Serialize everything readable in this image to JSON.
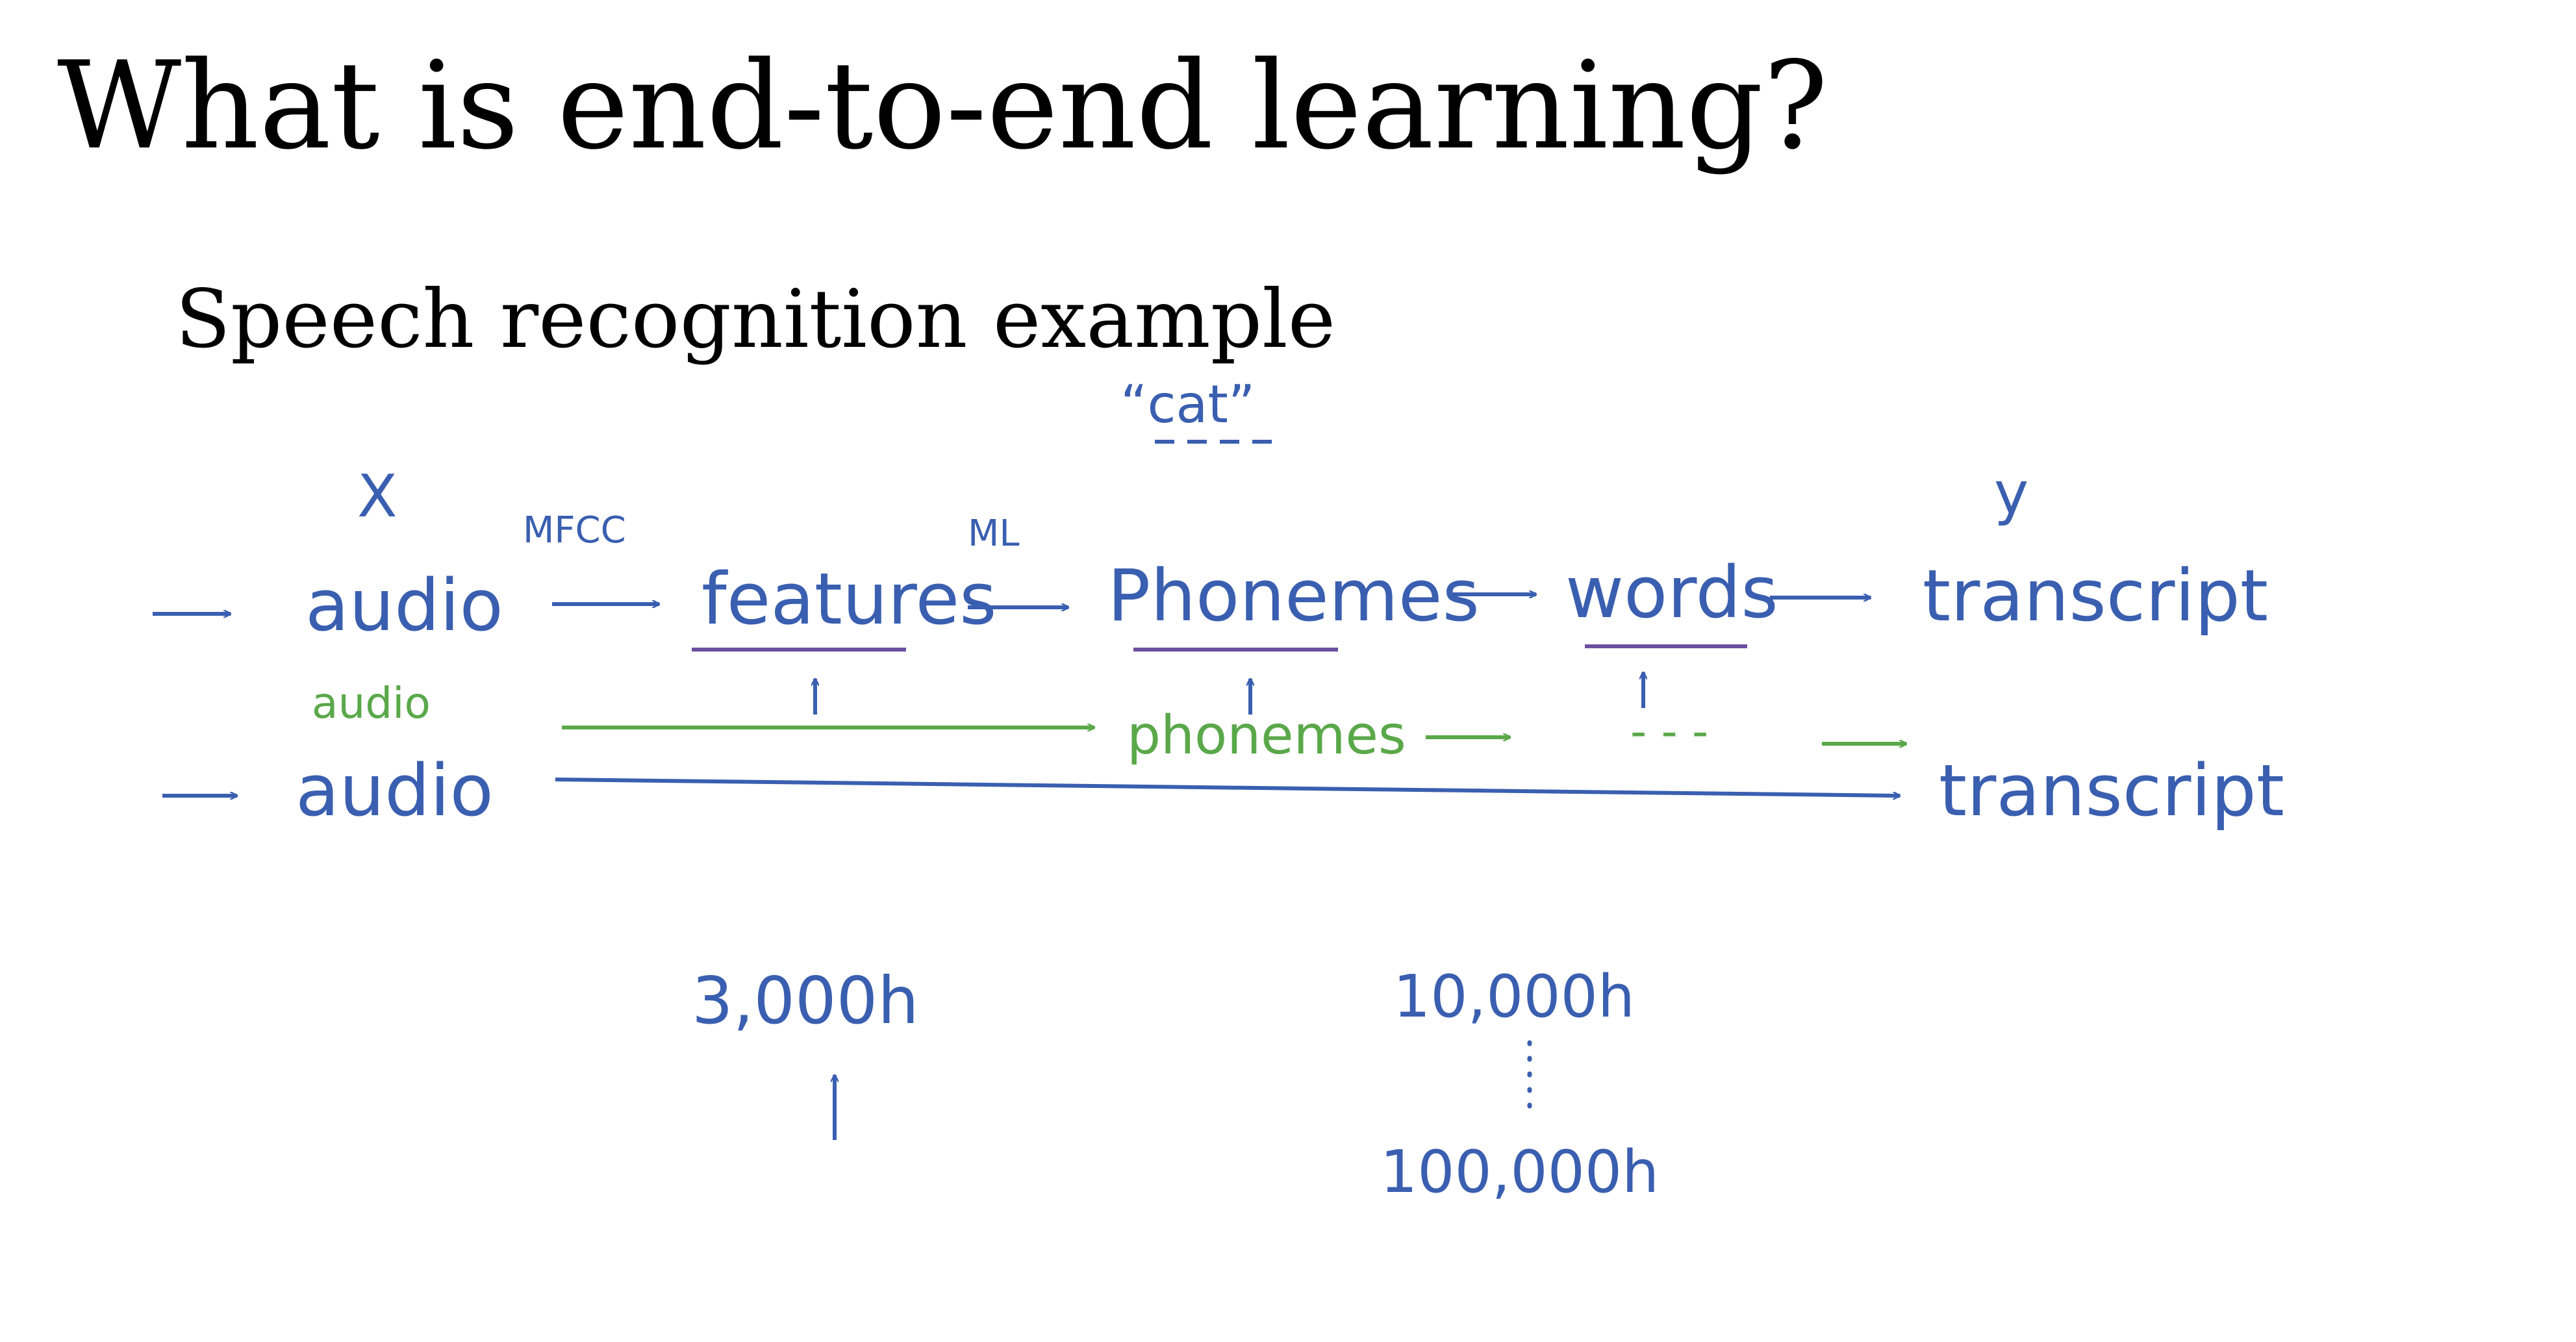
{
  "slide": {
    "title": "What is end-to-end learning?",
    "subtitle": "Speech recognition example"
  },
  "diagram": {
    "annotations": {
      "cat_label": "“cat”",
      "x_label": "X",
      "y_label": "y",
      "mfcc_label": "MFCC",
      "ml_label": "ML"
    },
    "pipeline_row": {
      "audio": "audio",
      "features": "features",
      "phonemes": "Phonemes",
      "words": "words",
      "transcript": "transcript"
    },
    "middle_row": {
      "audio": "audio",
      "phonemes": "phonemes",
      "ellipsis": "- - -"
    },
    "end_to_end_row": {
      "audio": "audio",
      "transcript": "transcript"
    },
    "data_sizes": {
      "small": "3,000h",
      "large_low": "10,000h",
      "large_high": "100,000h"
    },
    "colors": {
      "blue_ink": "#3a5fb0",
      "green_ink": "#5aa84a",
      "purple_ink": "#6b4fa0"
    }
  }
}
